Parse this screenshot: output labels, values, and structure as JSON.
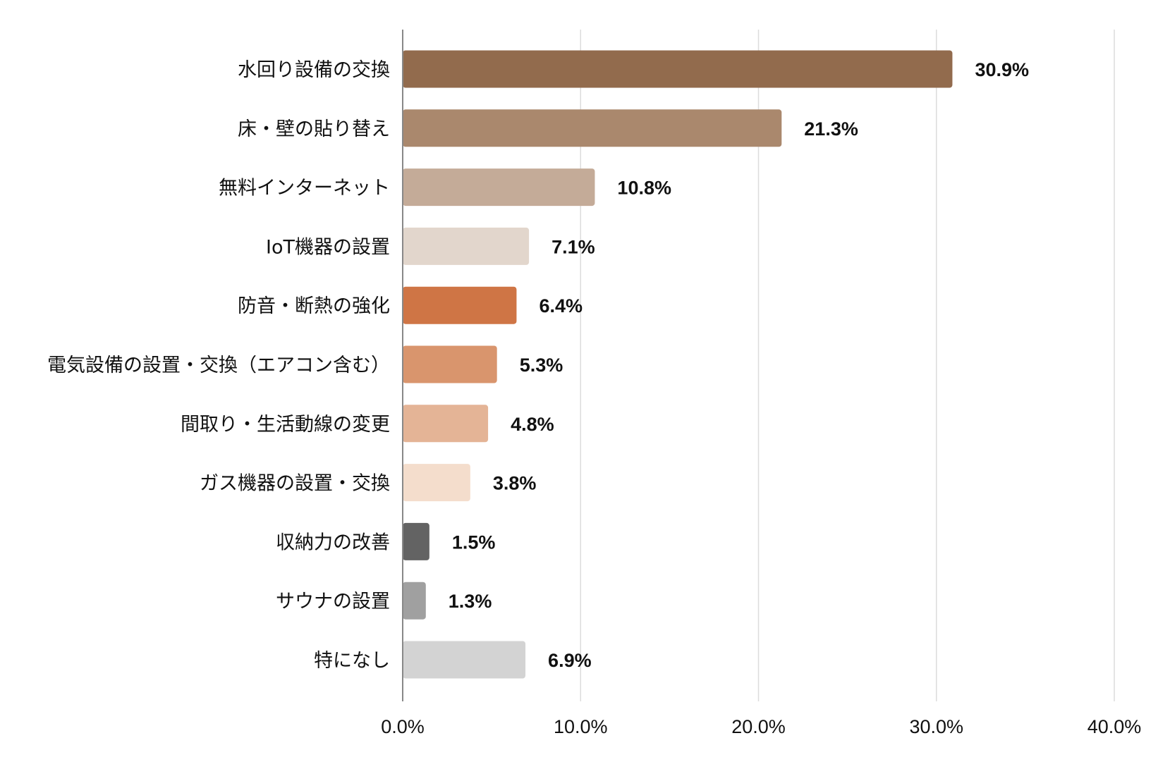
{
  "chart_data": {
    "type": "bar",
    "orientation": "horizontal",
    "title": "",
    "xlabel": "",
    "ylabel": "",
    "xlim": [
      0,
      40
    ],
    "grid": true,
    "categories": [
      "水回り設備の交換",
      "床・壁の貼り替え",
      "無料インターネット",
      "IoT機器の設置",
      "防音・断熱の強化",
      "電気設備の設置・交換（エアコン含む）",
      "間取り・生活動線の変更",
      "ガス機器の設置・交換",
      "収納力の改善",
      "サウナの設置",
      "特になし"
    ],
    "values": [
      30.9,
      21.3,
      10.8,
      7.1,
      6.4,
      5.3,
      4.8,
      3.8,
      1.5,
      1.3,
      6.9
    ],
    "value_labels": [
      "30.9%",
      "21.3%",
      "10.8%",
      "7.1%",
      "6.4%",
      "5.3%",
      "4.8%",
      "3.8%",
      "1.5%",
      "1.3%",
      "6.9%"
    ],
    "colors": [
      "#926b4d",
      "#aa886d",
      "#c4ab98",
      "#e2d6cc",
      "#cf7545",
      "#d9956d",
      "#e4b496",
      "#f4ddcc",
      "#636363",
      "#a0a0a0",
      "#d3d3d3"
    ],
    "x_ticks": [
      0,
      10,
      20,
      30,
      40
    ],
    "x_tick_labels": [
      "0.0%",
      "10.0%",
      "20.0%",
      "30.0%",
      "40.0%"
    ]
  }
}
